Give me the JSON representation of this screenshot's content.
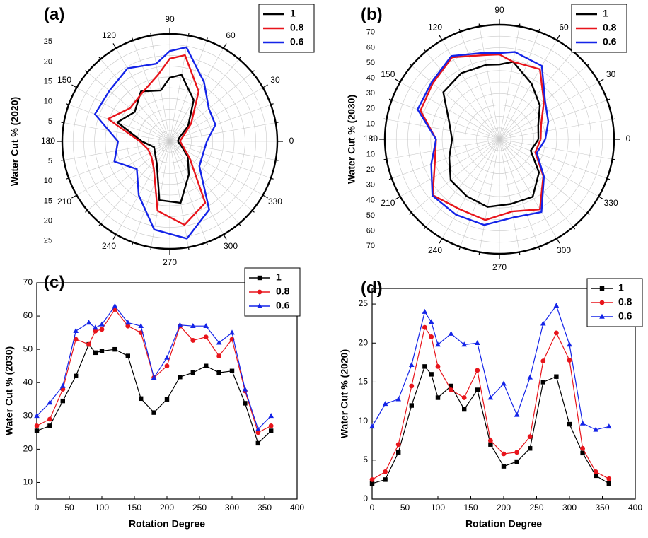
{
  "figure": {
    "panels": {
      "a": {
        "label": "(a)"
      },
      "b": {
        "label": "(b)"
      },
      "c": {
        "label": "(c)"
      },
      "d": {
        "label": "(d)"
      }
    }
  },
  "colors": {
    "s1": "#000000",
    "s08": "#e8141b",
    "s06": "#1424e8",
    "grid": "#c8c8c8"
  },
  "chart_data": [
    {
      "id": "a",
      "type": "polar",
      "ylabel": "Water Cut % (2020)",
      "angle_ticks": [
        0,
        30,
        60,
        90,
        120,
        150,
        180,
        210,
        240,
        270,
        300,
        330
      ],
      "radial_ticks": [
        0,
        5,
        10,
        15,
        20,
        25
      ],
      "rlim": [
        0,
        27
      ],
      "legend_position": "top-right",
      "x": [
        0,
        20,
        40,
        60,
        80,
        90,
        100,
        120,
        140,
        160,
        180,
        200,
        220,
        240,
        260,
        280,
        300,
        320,
        340,
        360
      ],
      "series": [
        {
          "name": "1",
          "values": [
            2,
            2.5,
            6,
            12,
            17,
            16,
            13,
            14.5,
            11.5,
            14,
            7,
            4.2,
            4.8,
            6.5,
            15,
            15.7,
            9.6,
            5.9,
            3,
            2
          ]
        },
        {
          "name": "0.8",
          "values": [
            2.5,
            3.5,
            7,
            14.5,
            22,
            20.8,
            17,
            14,
            13,
            16.5,
            7.5,
            5.8,
            6,
            8,
            17.7,
            21.3,
            17.8,
            6.5,
            3.5,
            2.6
          ]
        },
        {
          "name": "0.6",
          "values": [
            9.3,
            12.2,
            12.8,
            17.2,
            24,
            22.7,
            19.8,
            21.2,
            19.8,
            20,
            13,
            14.8,
            10.8,
            15.6,
            22.5,
            24.8,
            19.8,
            9.7,
            8.9,
            9.3
          ]
        }
      ]
    },
    {
      "id": "b",
      "type": "polar",
      "ylabel": "Water Cut % (2030)",
      "angle_ticks": [
        0,
        30,
        60,
        90,
        120,
        150,
        180,
        210,
        240,
        270,
        300,
        330
      ],
      "radial_ticks": [
        0,
        10,
        20,
        30,
        40,
        50,
        60,
        70
      ],
      "rlim": [
        0,
        75
      ],
      "legend_position": "top-right",
      "x": [
        0,
        20,
        40,
        60,
        80,
        90,
        100,
        120,
        140,
        160,
        180,
        200,
        220,
        240,
        260,
        280,
        300,
        320,
        340,
        360
      ],
      "series": [
        {
          "name": "1",
          "values": [
            25.5,
            27,
            34.5,
            42,
            51.5,
            49,
            49.5,
            50,
            48,
            35.2,
            31,
            35,
            41.7,
            43,
            45,
            43,
            43.5,
            33.8,
            21.8,
            25.5
          ]
        },
        {
          "name": "0.8",
          "values": [
            27,
            29,
            38,
            53,
            51.5,
            55.5,
            56,
            62,
            57,
            55,
            41.5,
            45,
            57,
            52.7,
            53.7,
            48,
            53,
            37.5,
            25,
            27
          ]
        },
        {
          "name": "0.6",
          "values": [
            30,
            34,
            39,
            55.5,
            58,
            56.5,
            57.5,
            63,
            58,
            57,
            41.5,
            47.5,
            57.3,
            57,
            57,
            52,
            55,
            38,
            26,
            30
          ]
        }
      ]
    },
    {
      "id": "c",
      "type": "line",
      "xlabel": "Rotation Degree",
      "ylabel": "Water Cut % (2030)",
      "xlim": [
        0,
        400
      ],
      "ylim": [
        5,
        70
      ],
      "x_ticks": [
        0,
        50,
        100,
        150,
        200,
        250,
        300,
        350,
        400
      ],
      "y_ticks": [
        10,
        20,
        30,
        40,
        50,
        60,
        70
      ],
      "legend_position": "top-right",
      "x": [
        0,
        20,
        40,
        60,
        80,
        90,
        100,
        120,
        140,
        160,
        180,
        200,
        220,
        240,
        260,
        280,
        300,
        320,
        340,
        360
      ],
      "series": [
        {
          "name": "1",
          "marker": "square",
          "values": [
            25.5,
            27,
            34.5,
            42,
            51.5,
            49,
            49.5,
            50,
            48,
            35.2,
            31,
            35,
            41.7,
            43,
            45,
            43,
            43.5,
            33.8,
            21.8,
            25.5
          ]
        },
        {
          "name": "0.8",
          "marker": "circle",
          "values": [
            27,
            29,
            38,
            53,
            51.5,
            55.5,
            56,
            62,
            57,
            55,
            41.5,
            45,
            57,
            52.7,
            53.7,
            48,
            53,
            37.5,
            25,
            27
          ]
        },
        {
          "name": "0.6",
          "marker": "triangle",
          "values": [
            30,
            34,
            39,
            55.5,
            58,
            56.5,
            57.5,
            63,
            58,
            57,
            41.5,
            47.5,
            57.3,
            57,
            57,
            52,
            55,
            38,
            26,
            30
          ]
        }
      ]
    },
    {
      "id": "d",
      "type": "line",
      "xlabel": "Rotation Degree",
      "ylabel": "Water Cut % (2020)",
      "xlim": [
        0,
        400
      ],
      "ylim": [
        0,
        27
      ],
      "x_ticks": [
        0,
        50,
        100,
        150,
        200,
        250,
        300,
        350,
        400
      ],
      "y_ticks": [
        0,
        5,
        10,
        15,
        20,
        25
      ],
      "legend_position": "top-right",
      "x": [
        0,
        20,
        40,
        60,
        80,
        90,
        100,
        120,
        140,
        160,
        180,
        200,
        220,
        240,
        260,
        280,
        300,
        320,
        340,
        360
      ],
      "series": [
        {
          "name": "1",
          "marker": "square",
          "values": [
            2,
            2.5,
            6,
            12,
            17,
            16,
            13,
            14.5,
            11.5,
            14,
            7,
            4.2,
            4.8,
            6.5,
            15,
            15.7,
            9.6,
            5.9,
            3,
            2
          ]
        },
        {
          "name": "0.8",
          "marker": "circle",
          "values": [
            2.5,
            3.5,
            7,
            14.5,
            22,
            20.8,
            17,
            14,
            13,
            16.5,
            7.5,
            5.8,
            6,
            8,
            17.7,
            21.3,
            17.8,
            6.5,
            3.5,
            2.6
          ]
        },
        {
          "name": "0.6",
          "marker": "triangle",
          "values": [
            9.3,
            12.2,
            12.8,
            17.2,
            24,
            22.7,
            19.8,
            21.2,
            19.8,
            20,
            13,
            14.8,
            10.8,
            15.6,
            22.5,
            24.8,
            19.8,
            9.7,
            8.9,
            9.3
          ]
        }
      ]
    }
  ]
}
